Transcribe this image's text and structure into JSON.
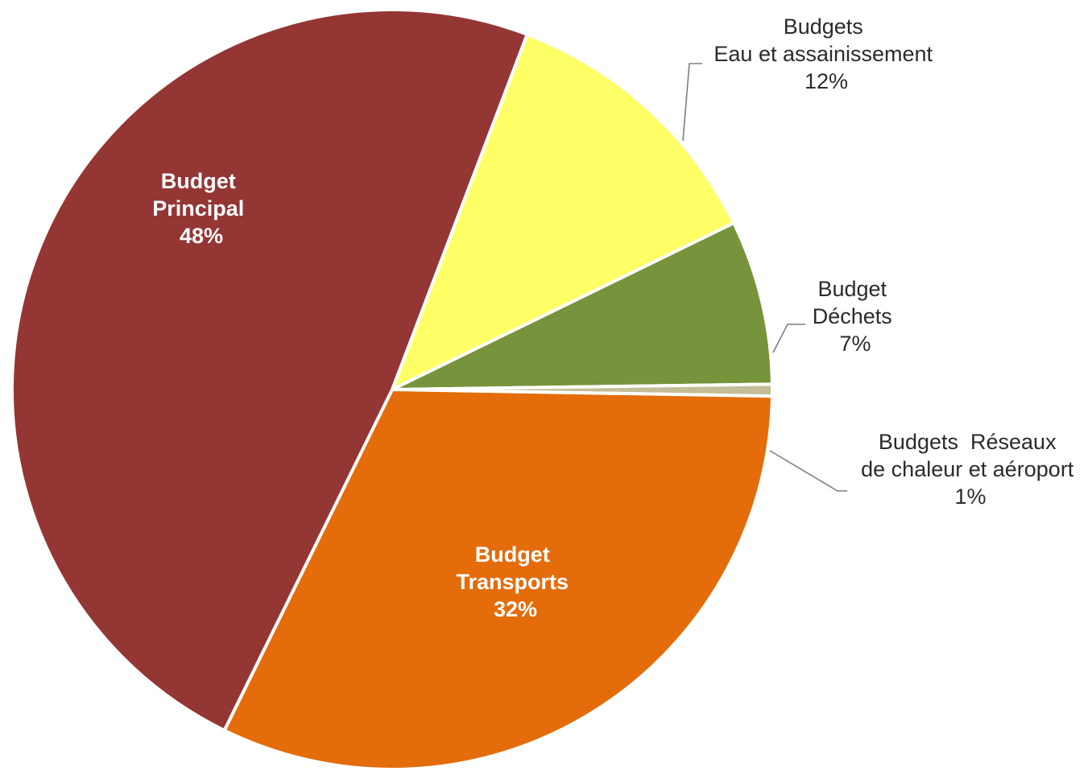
{
  "chart_data": {
    "type": "pie",
    "title": "",
    "slices": [
      {
        "label_lines": [
          "Budgets",
          "Eau et assainissement"
        ],
        "value": 12,
        "pct_label": "12%",
        "color": "#FFFF66"
      },
      {
        "label_lines": [
          "Budget",
          "Déchets"
        ],
        "value": 7,
        "pct_label": "7%",
        "color": "#77933C"
      },
      {
        "label_lines": [
          "Budgets  Réseaux",
          "de chaleur et aéroport"
        ],
        "value": 0.5,
        "pct_label": "1%",
        "color": "#C4BD97"
      },
      {
        "label_lines": [
          "Budget",
          "Transports"
        ],
        "value": 32,
        "pct_label": "32%",
        "color": "#E46C0A"
      },
      {
        "label_lines": [
          "Budget",
          "Principal"
        ],
        "value": 48.5,
        "pct_label": "48%",
        "color": "#943634"
      }
    ],
    "start_angle_deg": 20.8,
    "direction": "clockwise",
    "legend": "none"
  }
}
